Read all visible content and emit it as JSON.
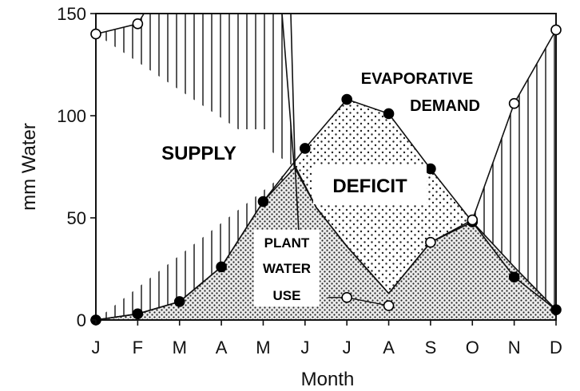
{
  "chart_data": {
    "type": "line",
    "title": "",
    "xlabel": "Month",
    "ylabel": "mm Water",
    "categories": [
      "J",
      "F",
      "M",
      "A",
      "M",
      "J",
      "J",
      "A",
      "S",
      "O",
      "N",
      "D"
    ],
    "ylim": [
      0,
      150
    ],
    "yticks": [
      0,
      50,
      100,
      150
    ],
    "grid": false,
    "series": [
      {
        "name": "",
        "marker": "filled-circle",
        "values": [
          0,
          3,
          9,
          26,
          58,
          84,
          108,
          101,
          74,
          48,
          21,
          5
        ]
      },
      {
        "name": "",
        "marker": "open-circle",
        "values": [
          140,
          145,
          null,
          null,
          null,
          null,
          11,
          7,
          38,
          49,
          106,
          142
        ]
      }
    ],
    "plant_water_use": [
      [
        0,
        0
      ],
      [
        1,
        3
      ],
      [
        2,
        9
      ],
      [
        3,
        26
      ],
      [
        4,
        58
      ],
      [
        4.77,
        75
      ],
      [
        5.27,
        55
      ],
      [
        6,
        36
      ],
      [
        7,
        13
      ],
      [
        8,
        38
      ],
      [
        9,
        48
      ],
      [
        10,
        26
      ],
      [
        11,
        5
      ]
    ],
    "supply_top": [
      [
        0,
        140
      ],
      [
        1,
        145
      ],
      [
        1.15,
        150
      ],
      [
        4.45,
        150
      ],
      [
        4.74,
        75
      ],
      [
        5.27,
        55
      ],
      [
        6,
        36
      ],
      [
        7,
        13
      ],
      [
        8,
        38
      ],
      [
        9,
        49
      ],
      [
        10,
        106
      ],
      [
        11,
        142
      ]
    ],
    "supply_hatch_y0": [
      [
        0,
        0
      ],
      [
        4.74,
        75
      ]
    ],
    "supply_hatch_y0_right": [
      [
        9,
        49
      ],
      [
        10,
        26
      ],
      [
        11,
        5
      ]
    ],
    "callout_line": [
      [
        4.66,
        150
      ],
      [
        4.76,
        75
      ],
      [
        4.85,
        43
      ],
      [
        5.1,
        43
      ]
    ],
    "use_connector": [
      [
        5.55,
        11
      ],
      [
        6,
        11
      ],
      [
        7,
        7
      ]
    ],
    "annotations": {
      "supply": "SUPPLY",
      "deficit": "DEFICIT",
      "evaporative_demand": [
        "EVAPORATIVE",
        "DEMAND"
      ],
      "plant_water_use": [
        "PLANT",
        "WATER",
        "USE"
      ]
    }
  }
}
